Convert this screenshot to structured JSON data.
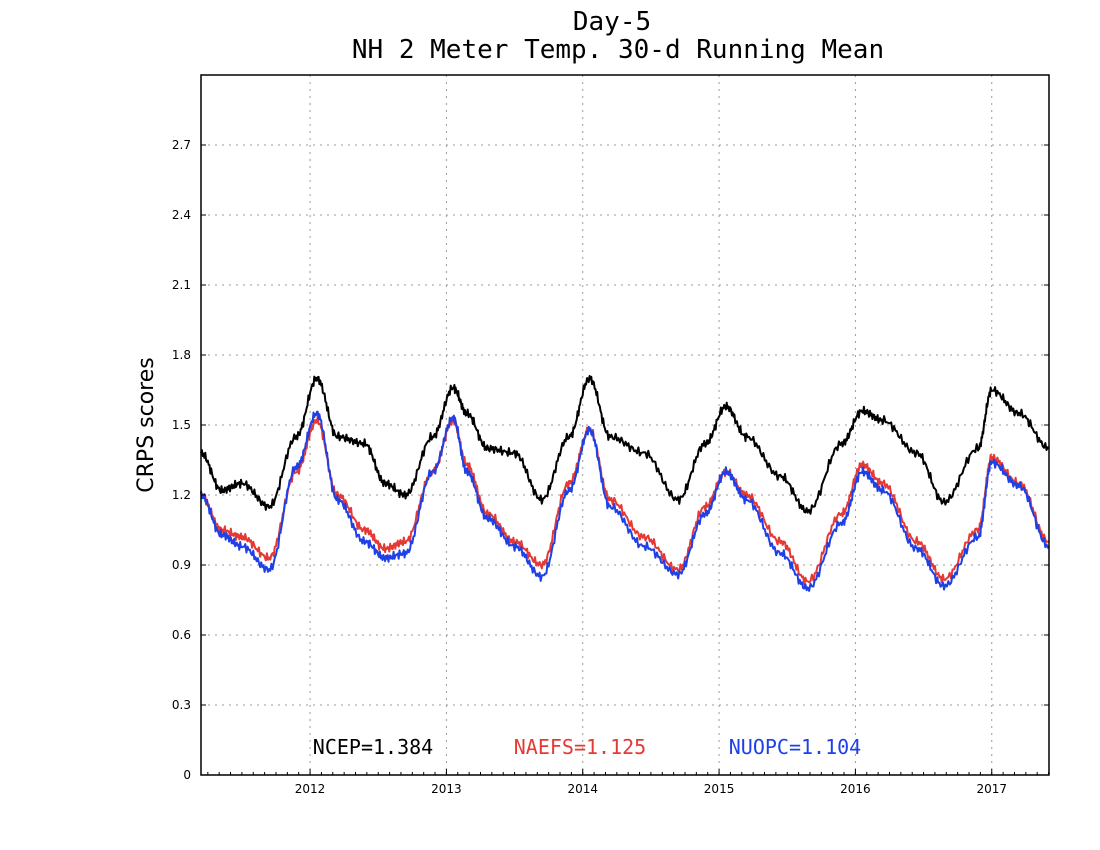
{
  "chart_data": {
    "type": "line",
    "title": "Day-5",
    "subtitle": "NH 2 Meter Temp. 30-d Running Mean",
    "xlabel": "",
    "ylabel": "CRPS scores",
    "ylim": [
      0,
      3.0
    ],
    "xlim": [
      2011.2,
      2017.42
    ],
    "yticks": [
      "0",
      "0.3",
      "0.6",
      "0.9",
      "1.2",
      "1.5",
      "1.8",
      "2.1",
      "2.4",
      "2.7"
    ],
    "ytick_values": [
      0,
      0.3,
      0.6,
      0.9,
      1.2,
      1.5,
      1.8,
      2.1,
      2.4,
      2.7
    ],
    "xticks": [
      "2012",
      "2013",
      "2014",
      "2015",
      "2016",
      "2017"
    ],
    "xtick_values": [
      2012,
      2013,
      2014,
      2015,
      2016,
      2017
    ],
    "grid": true,
    "legend_placement": "bottom",
    "x": [
      2011.2,
      2011.35,
      2011.5,
      2011.7,
      2011.9,
      2012.05,
      2012.2,
      2012.4,
      2012.55,
      2012.7,
      2012.9,
      2013.05,
      2013.15,
      2013.3,
      2013.5,
      2013.7,
      2013.9,
      2014.05,
      2014.2,
      2014.45,
      2014.7,
      2014.9,
      2015.05,
      2015.2,
      2015.45,
      2015.65,
      2015.9,
      2016.05,
      2016.2,
      2016.45,
      2016.65,
      2016.9,
      2017.0,
      2017.2,
      2017.42
    ],
    "series": [
      {
        "name": "NCEP",
        "legend_text": "NCEP=1.384",
        "color": "#000000",
        "values": [
          1.38,
          1.22,
          1.25,
          1.15,
          1.45,
          1.7,
          1.45,
          1.42,
          1.25,
          1.2,
          1.45,
          1.66,
          1.55,
          1.4,
          1.38,
          1.18,
          1.45,
          1.7,
          1.45,
          1.38,
          1.18,
          1.42,
          1.58,
          1.45,
          1.28,
          1.13,
          1.42,
          1.56,
          1.52,
          1.38,
          1.17,
          1.4,
          1.65,
          1.55,
          1.4
        ]
      },
      {
        "name": "NAEFS",
        "legend_text": "NAEFS=1.125",
        "color": "#e53935",
        "values": [
          1.2,
          1.05,
          1.02,
          0.93,
          1.3,
          1.52,
          1.2,
          1.05,
          0.97,
          1.0,
          1.3,
          1.52,
          1.33,
          1.12,
          1.0,
          0.9,
          1.25,
          1.48,
          1.18,
          1.02,
          0.88,
          1.15,
          1.3,
          1.2,
          1.0,
          0.83,
          1.12,
          1.33,
          1.25,
          1.0,
          0.84,
          1.05,
          1.36,
          1.25,
          1.0
        ]
      },
      {
        "name": "NUOPC",
        "legend_text": "NUOPC=1.104",
        "color": "#1e40e6",
        "values": [
          1.2,
          1.03,
          0.98,
          0.88,
          1.32,
          1.55,
          1.18,
          1.0,
          0.93,
          0.95,
          1.3,
          1.53,
          1.3,
          1.1,
          0.98,
          0.85,
          1.22,
          1.48,
          1.15,
          0.98,
          0.86,
          1.12,
          1.3,
          1.18,
          0.95,
          0.8,
          1.08,
          1.3,
          1.22,
          0.97,
          0.81,
          1.02,
          1.34,
          1.24,
          0.98
        ]
      }
    ]
  }
}
